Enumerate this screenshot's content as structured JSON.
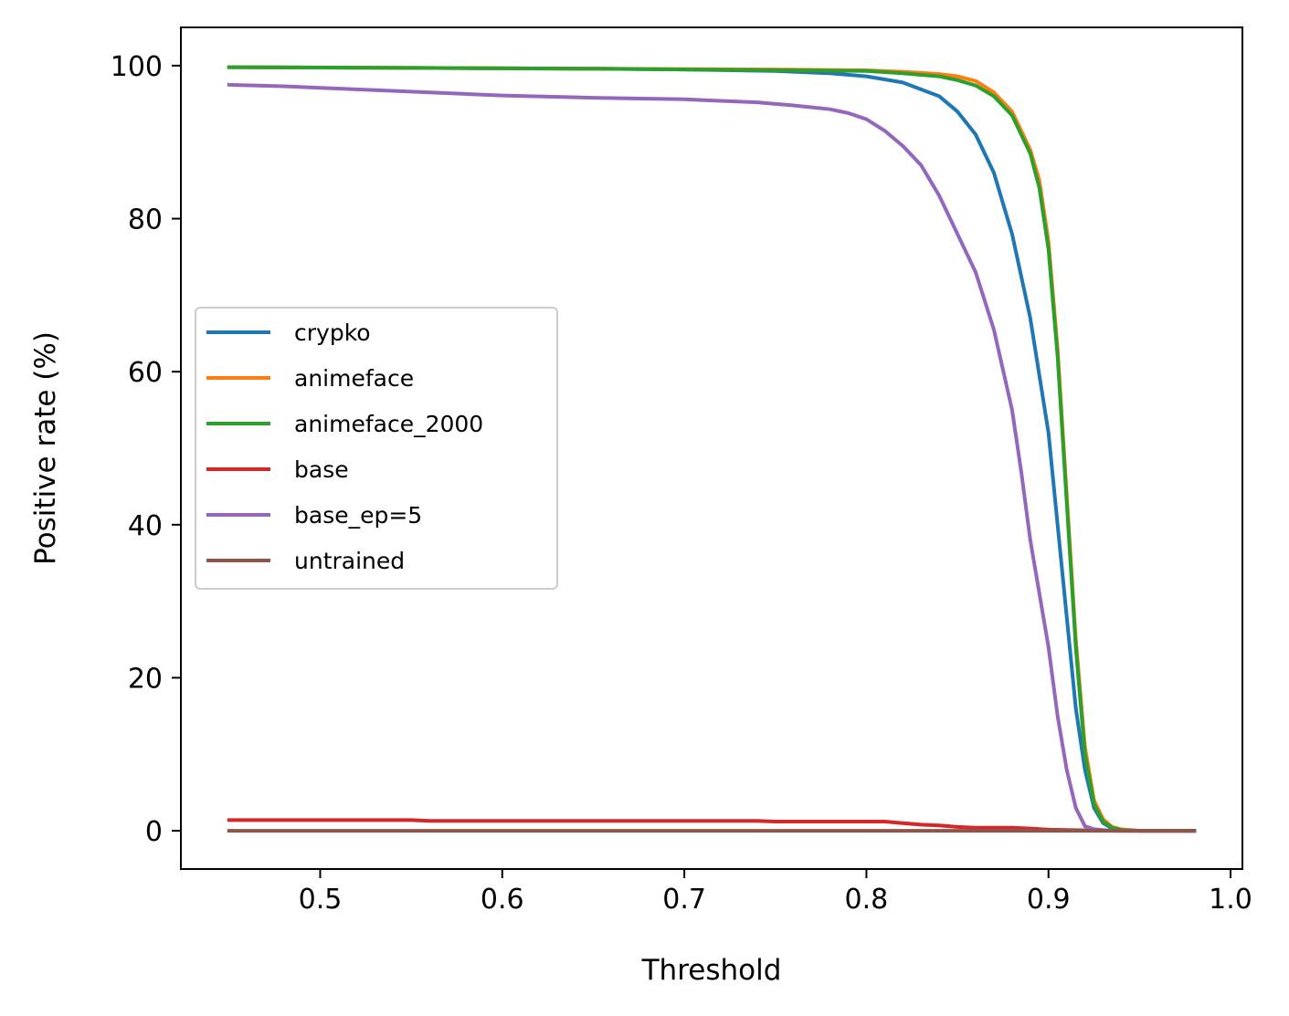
{
  "chart_data": {
    "type": "line",
    "title": "",
    "xlabel": "Threshold",
    "ylabel": "Positive rate (%)",
    "xlim": [
      0.4235,
      1.0065
    ],
    "ylim": [
      -5,
      105
    ],
    "xticks": [
      0.5,
      0.6,
      0.7,
      0.8,
      0.9,
      1.0
    ],
    "xtick_labels": [
      "0.5",
      "0.6",
      "0.7",
      "0.8",
      "0.9",
      "1.0"
    ],
    "yticks": [
      0,
      20,
      40,
      60,
      80,
      100
    ],
    "ytick_labels": [
      "0",
      "20",
      "40",
      "60",
      "80",
      "100"
    ],
    "grid": false,
    "legend_position": "center-left",
    "series": [
      {
        "name": "crypko",
        "color": "#1f77b4",
        "x": [
          0.45,
          0.55,
          0.65,
          0.7,
          0.75,
          0.78,
          0.8,
          0.82,
          0.84,
          0.85,
          0.86,
          0.87,
          0.88,
          0.89,
          0.9,
          0.905,
          0.91,
          0.915,
          0.92,
          0.925,
          0.93,
          0.935,
          0.94,
          0.95,
          0.98
        ],
        "y": [
          99.8,
          99.7,
          99.6,
          99.5,
          99.3,
          99.0,
          98.6,
          97.8,
          96.0,
          94.0,
          91.0,
          86.0,
          78.0,
          67.0,
          52.0,
          40.0,
          28.0,
          16.0,
          8.0,
          3.0,
          1.0,
          0.3,
          0.1,
          0.0,
          0.0
        ]
      },
      {
        "name": "animeface",
        "color": "#ff7f0e",
        "x": [
          0.45,
          0.55,
          0.65,
          0.75,
          0.8,
          0.82,
          0.84,
          0.85,
          0.86,
          0.87,
          0.88,
          0.89,
          0.895,
          0.9,
          0.905,
          0.91,
          0.915,
          0.92,
          0.925,
          0.93,
          0.935,
          0.94,
          0.95,
          0.98
        ],
        "y": [
          99.8,
          99.7,
          99.6,
          99.5,
          99.4,
          99.2,
          98.9,
          98.6,
          98.0,
          96.5,
          94.0,
          89.0,
          85.0,
          77.0,
          63.0,
          44.0,
          25.0,
          11.0,
          4.0,
          1.5,
          0.5,
          0.2,
          0.0,
          0.0
        ]
      },
      {
        "name": "animeface_2000",
        "color": "#2ca02c",
        "x": [
          0.45,
          0.55,
          0.65,
          0.75,
          0.8,
          0.82,
          0.84,
          0.85,
          0.86,
          0.87,
          0.88,
          0.89,
          0.895,
          0.9,
          0.905,
          0.91,
          0.915,
          0.92,
          0.925,
          0.93,
          0.935,
          0.94,
          0.95,
          0.98
        ],
        "y": [
          99.8,
          99.7,
          99.6,
          99.4,
          99.3,
          99.0,
          98.6,
          98.1,
          97.4,
          96.0,
          93.5,
          88.5,
          84.0,
          76.0,
          62.0,
          43.0,
          24.0,
          10.0,
          3.5,
          1.2,
          0.4,
          0.1,
          0.0,
          0.0
        ]
      },
      {
        "name": "base",
        "color": "#d62728",
        "x": [
          0.45,
          0.55,
          0.56,
          0.65,
          0.74,
          0.75,
          0.81,
          0.82,
          0.83,
          0.84,
          0.85,
          0.86,
          0.87,
          0.88,
          0.89,
          0.9,
          0.92,
          0.94,
          0.98
        ],
        "y": [
          1.4,
          1.4,
          1.3,
          1.3,
          1.3,
          1.2,
          1.2,
          1.0,
          0.8,
          0.7,
          0.5,
          0.4,
          0.4,
          0.4,
          0.3,
          0.15,
          0.05,
          0.0,
          0.0
        ]
      },
      {
        "name": "base_ep=5",
        "color": "#9467bd",
        "x": [
          0.45,
          0.48,
          0.5,
          0.55,
          0.6,
          0.65,
          0.7,
          0.74,
          0.76,
          0.78,
          0.79,
          0.8,
          0.81,
          0.82,
          0.83,
          0.84,
          0.85,
          0.86,
          0.87,
          0.88,
          0.885,
          0.89,
          0.895,
          0.9,
          0.905,
          0.91,
          0.915,
          0.92,
          0.925,
          0.93,
          0.935,
          0.94,
          0.95,
          0.98
        ],
        "y": [
          97.5,
          97.3,
          97.1,
          96.6,
          96.1,
          95.8,
          95.6,
          95.2,
          94.8,
          94.3,
          93.8,
          93.0,
          91.5,
          89.5,
          87.0,
          83.0,
          78.0,
          73.0,
          65.5,
          55.0,
          47.0,
          38.0,
          31.0,
          24.0,
          15.0,
          8.0,
          3.0,
          0.6,
          0.2,
          0.1,
          0.0,
          0.0,
          0.0,
          0.0
        ]
      },
      {
        "name": "untrained",
        "color": "#8c564b",
        "x": [
          0.45,
          0.98
        ],
        "y": [
          0.0,
          0.0
        ]
      }
    ]
  }
}
